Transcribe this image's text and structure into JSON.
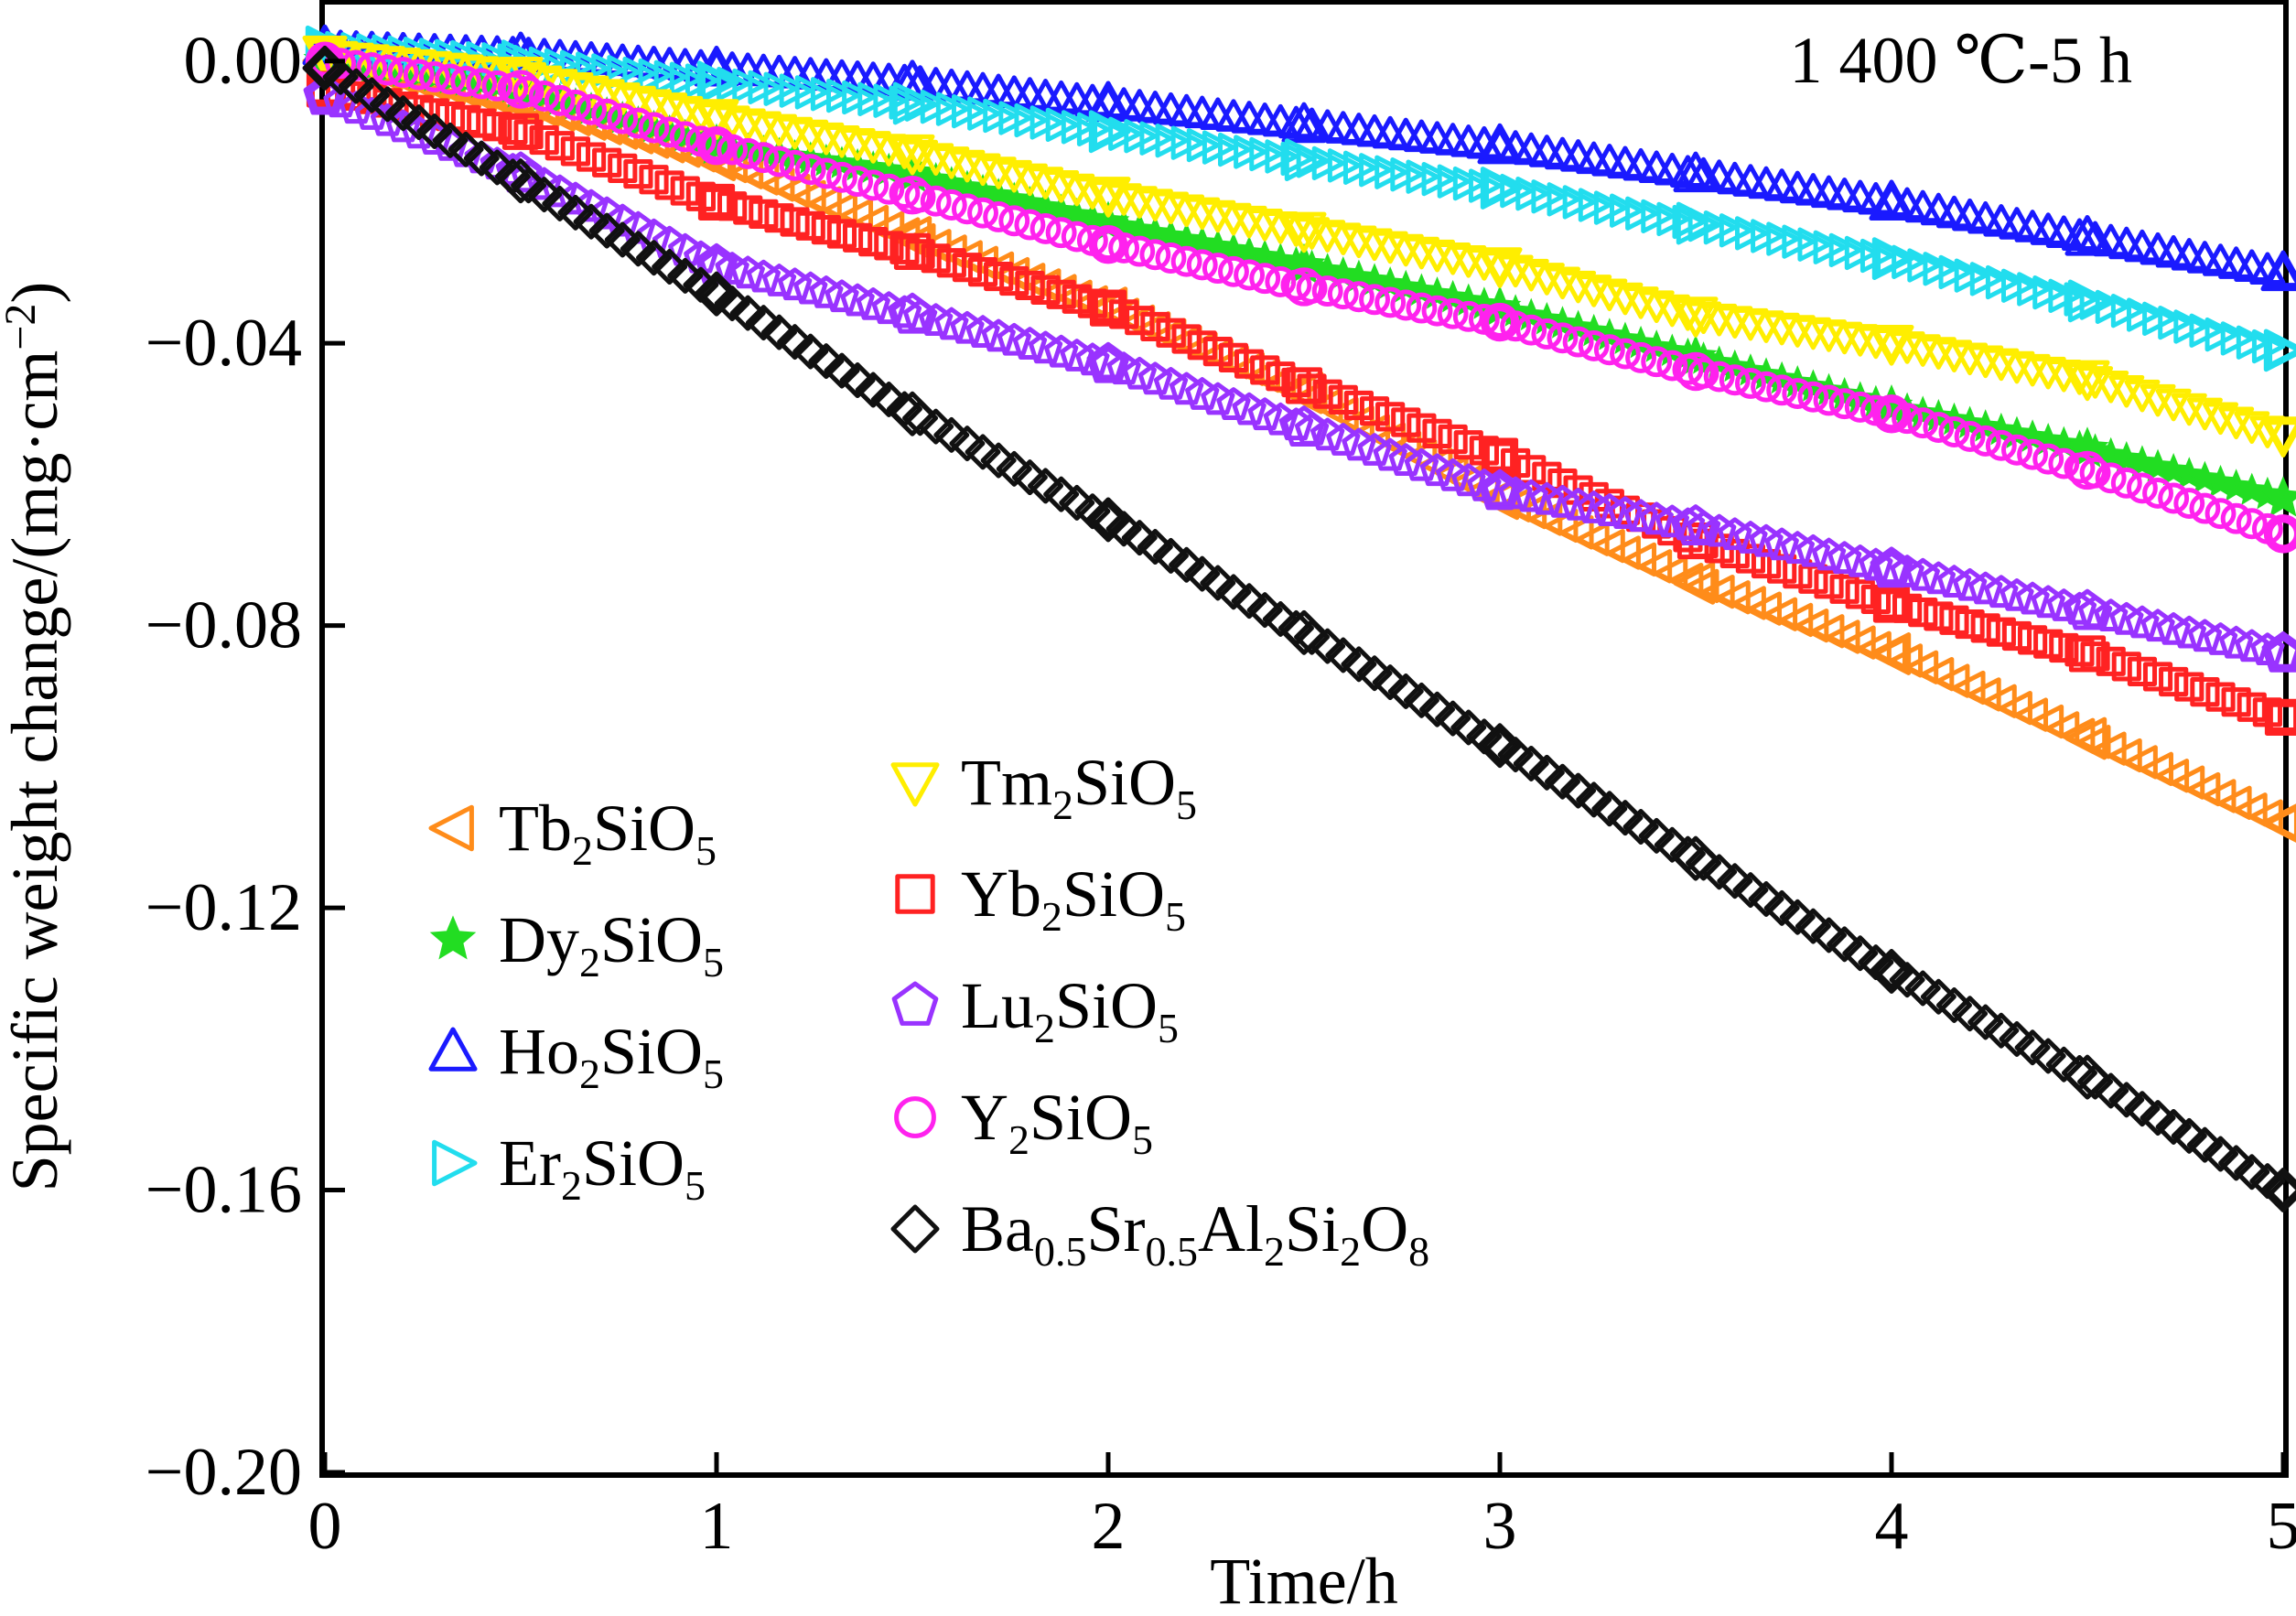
{
  "chart_data": {
    "type": "scatter",
    "title": "",
    "annotation": "1 400 ℃-5 h",
    "xlabel": "Time/h",
    "ylabel": "Specific weight change/(mg·cm⁻²)",
    "xlim": [
      0,
      5
    ],
    "ylim": [
      -0.2,
      0.008
    ],
    "x_ticks": [
      0,
      1,
      2,
      3,
      4,
      5
    ],
    "x_tick_labels": [
      "0",
      "1",
      "2",
      "3",
      "4",
      "5"
    ],
    "y_ticks": [
      0,
      -0.04,
      -0.08,
      -0.12,
      -0.16,
      -0.2
    ],
    "y_tick_labels": [
      "0.00",
      "−0.04",
      "−0.08",
      "−0.12",
      "−0.16",
      "−0.20"
    ],
    "grid": false,
    "legend_columns": [
      [
        {
          "base": "Tb",
          "sub": "2",
          "mid": "SiO",
          "sub2": "5"
        },
        {
          "base": "Dy",
          "sub": "2",
          "mid": "SiO",
          "sub2": "5"
        },
        {
          "base": "Ho",
          "sub": "2",
          "mid": "SiO",
          "sub2": "5"
        },
        {
          "base": "Er",
          "sub": "2",
          "mid": "SiO",
          "sub2": "5"
        }
      ],
      [
        {
          "base": "Tm",
          "sub": "2",
          "mid": "SiO",
          "sub2": "5"
        },
        {
          "base": "Yb",
          "sub": "2",
          "mid": "SiO",
          "sub2": "5"
        },
        {
          "base": "Lu",
          "sub": "2",
          "mid": "SiO",
          "sub2": "5"
        },
        {
          "base": "Y",
          "sub": "2",
          "mid": "SiO",
          "sub2": "5"
        },
        {
          "base": "Ba",
          "sub": "0.5",
          "mid": "Sr",
          "sub2": "0.5",
          "tail": "Al",
          "sub3": "2",
          "tail2": "Si",
          "sub4": "2",
          "tail3": "O",
          "sub5": "8"
        }
      ]
    ],
    "series": [
      {
        "name": "Tb2SiO5",
        "color": "#ff8c1a",
        "marker": "triangle-left",
        "x": [
          0,
          0.5,
          1.0,
          1.5,
          2.0,
          2.5,
          3.0,
          3.5,
          4.0,
          4.5,
          5.0
        ],
        "y": [
          0.0,
          -0.006,
          -0.014,
          -0.025,
          -0.035,
          -0.047,
          -0.062,
          -0.074,
          -0.084,
          -0.096,
          -0.108
        ]
      },
      {
        "name": "Dy2SiO5",
        "color": "#22dd22",
        "marker": "star",
        "x": [
          0,
          0.5,
          1.0,
          1.5,
          2.0,
          2.5,
          3.0,
          3.5,
          4.0,
          4.5,
          5.0
        ],
        "y": [
          0.0,
          -0.004,
          -0.012,
          -0.016,
          -0.023,
          -0.029,
          -0.035,
          -0.042,
          -0.049,
          -0.055,
          -0.062
        ]
      },
      {
        "name": "Ho2SiO5",
        "color": "#1a1aff",
        "marker": "triangle-up",
        "x": [
          0,
          0.5,
          1.0,
          1.5,
          2.0,
          2.5,
          3.0,
          3.5,
          4.0,
          4.5,
          5.0
        ],
        "y": [
          0.002,
          0.001,
          -0.001,
          -0.003,
          -0.006,
          -0.009,
          -0.012,
          -0.016,
          -0.02,
          -0.025,
          -0.03
        ]
      },
      {
        "name": "Er2SiO5",
        "color": "#22ddee",
        "marker": "triangle-right",
        "x": [
          0,
          0.5,
          1.0,
          1.5,
          2.0,
          2.5,
          3.0,
          3.5,
          4.0,
          4.5,
          5.0
        ],
        "y": [
          0.002,
          0.0,
          -0.003,
          -0.006,
          -0.01,
          -0.014,
          -0.018,
          -0.023,
          -0.028,
          -0.034,
          -0.041
        ]
      },
      {
        "name": "Tm2SiO5",
        "color": "#ffee00",
        "marker": "triangle-down",
        "x": [
          0,
          0.5,
          1.0,
          1.5,
          2.0,
          2.5,
          3.0,
          3.5,
          4.0,
          4.5,
          5.0
        ],
        "y": [
          0.001,
          -0.002,
          -0.008,
          -0.013,
          -0.019,
          -0.024,
          -0.029,
          -0.036,
          -0.04,
          -0.045,
          -0.053
        ]
      },
      {
        "name": "Yb2SiO5",
        "color": "#ff2222",
        "marker": "square",
        "x": [
          0,
          0.5,
          1.0,
          1.5,
          2.0,
          2.5,
          3.0,
          3.5,
          4.0,
          4.5,
          5.0
        ],
        "y": [
          -0.004,
          -0.01,
          -0.02,
          -0.027,
          -0.035,
          -0.046,
          -0.056,
          -0.068,
          -0.077,
          -0.084,
          -0.093
        ]
      },
      {
        "name": "Lu2SiO5",
        "color": "#9933ff",
        "marker": "pentagon",
        "x": [
          0,
          0.5,
          1.0,
          1.5,
          2.0,
          2.5,
          3.0,
          3.5,
          4.0,
          4.5,
          5.0
        ],
        "y": [
          -0.005,
          -0.016,
          -0.029,
          -0.036,
          -0.043,
          -0.052,
          -0.061,
          -0.066,
          -0.072,
          -0.078,
          -0.084
        ]
      },
      {
        "name": "Y2SiO5",
        "color": "#ff22ee",
        "marker": "circle",
        "x": [
          0,
          0.5,
          1.0,
          1.5,
          2.0,
          2.5,
          3.0,
          3.5,
          4.0,
          4.5,
          5.0
        ],
        "y": [
          0.0,
          -0.004,
          -0.012,
          -0.019,
          -0.026,
          -0.032,
          -0.037,
          -0.044,
          -0.05,
          -0.058,
          -0.067
        ]
      },
      {
        "name": "Ba0.5Sr0.5Al2Si2O8",
        "color": "#111111",
        "marker": "diamond",
        "x": [
          0,
          0.5,
          1.0,
          1.5,
          2.0,
          2.5,
          3.0,
          3.5,
          4.0,
          4.5,
          5.0
        ],
        "y": [
          -0.001,
          -0.017,
          -0.033,
          -0.05,
          -0.065,
          -0.081,
          -0.097,
          -0.113,
          -0.129,
          -0.144,
          -0.16
        ]
      }
    ]
  }
}
